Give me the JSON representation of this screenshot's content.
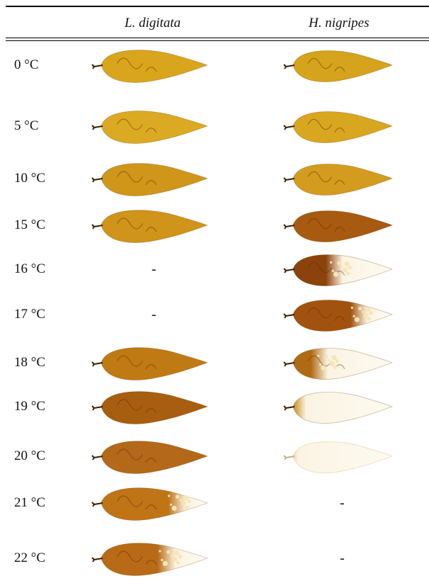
{
  "table": {
    "columns": [
      "L. digitata",
      "H. nigripes"
    ],
    "rows": [
      {
        "temp": "0 °C",
        "l": {
          "present": true,
          "bleach": 0.0,
          "tone": "#d9a51c"
        },
        "h": {
          "present": true,
          "bleach": 0.0,
          "tone": "#d6a31c"
        }
      },
      {
        "temp": "5 °C",
        "l": {
          "present": true,
          "bleach": 0.0,
          "tone": "#dcaa22"
        },
        "h": {
          "present": true,
          "bleach": 0.0,
          "tone": "#d9a620"
        }
      },
      {
        "temp": "10 °C",
        "l": {
          "present": true,
          "bleach": 0.0,
          "tone": "#cf961a"
        },
        "h": {
          "present": true,
          "bleach": 0.0,
          "tone": "#d39c1e"
        }
      },
      {
        "temp": "15 °C",
        "l": {
          "present": true,
          "bleach": 0.0,
          "tone": "#cf9419"
        },
        "h": {
          "present": true,
          "bleach": 0.0,
          "tone": "#a85a10"
        }
      },
      {
        "temp": "16 °C",
        "l": {
          "present": false,
          "text": "-"
        },
        "h": {
          "present": true,
          "bleach": 0.55,
          "tone": "#8c420c"
        }
      },
      {
        "temp": "17 °C",
        "l": {
          "present": false,
          "text": "-"
        },
        "h": {
          "present": true,
          "bleach": 0.3,
          "tone": "#a2520f"
        }
      },
      {
        "temp": "18 °C",
        "l": {
          "present": true,
          "bleach": 0.0,
          "tone": "#c07a14"
        },
        "h": {
          "present": true,
          "bleach": 0.7,
          "tone": "#b06a14"
        }
      },
      {
        "temp": "19 °C",
        "l": {
          "present": true,
          "bleach": 0.0,
          "tone": "#a85e10"
        },
        "h": {
          "present": true,
          "bleach": 0.92,
          "tone": "#c68a1e"
        }
      },
      {
        "temp": "20 °C",
        "l": {
          "present": true,
          "bleach": 0.0,
          "tone": "#b3681a"
        },
        "h": {
          "present": true,
          "bleach": 1.0,
          "tone": "#e8d7a6"
        }
      },
      {
        "temp": "21 °C",
        "l": {
          "present": true,
          "bleach": 0.25,
          "tone": "#bf7416"
        },
        "h": {
          "present": false,
          "text": "-"
        }
      },
      {
        "temp": "22 °C",
        "l": {
          "present": true,
          "bleach": 0.35,
          "tone": "#b86a16"
        },
        "h": {
          "present": false,
          "text": "-"
        }
      }
    ]
  }
}
